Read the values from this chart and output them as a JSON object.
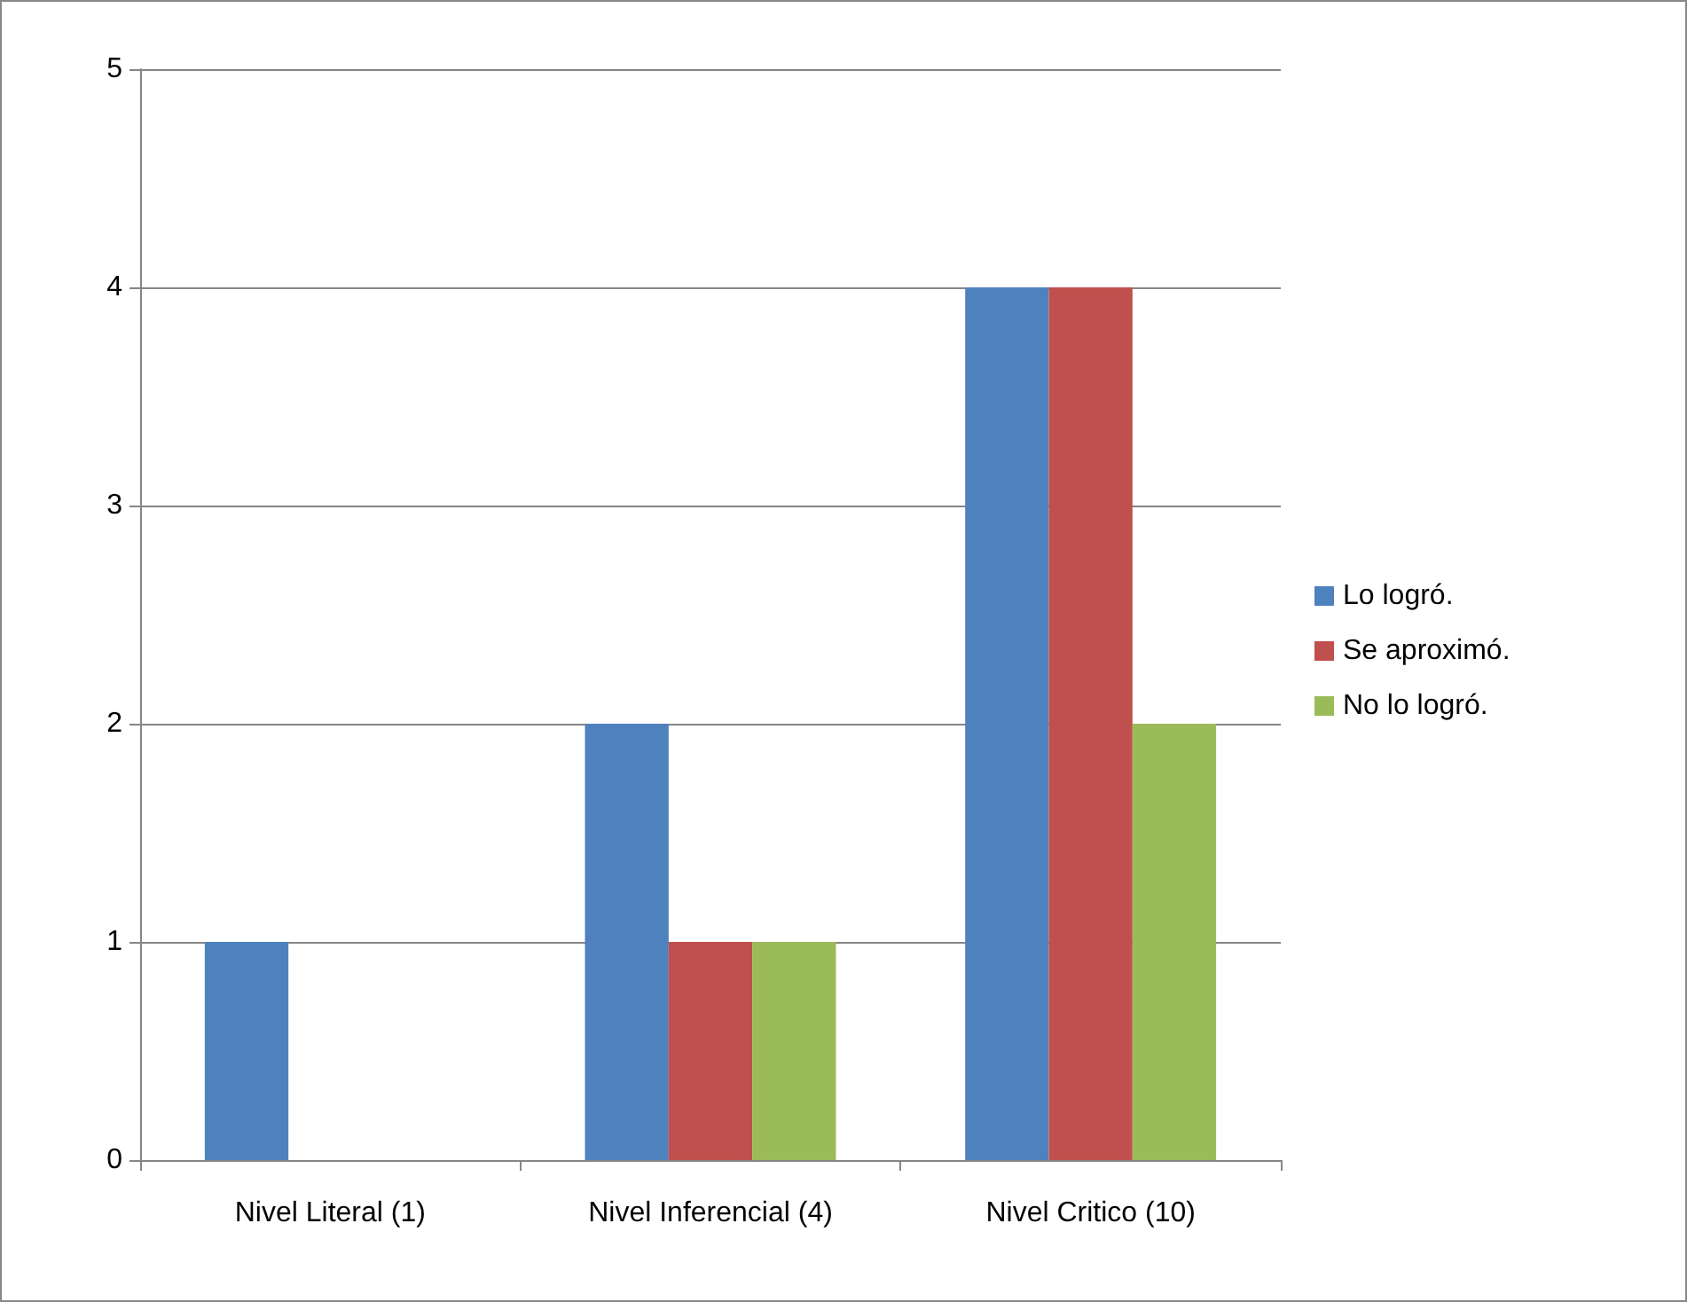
{
  "chart_data": {
    "type": "bar",
    "categories": [
      "Nivel Literal (1)",
      "Nivel Inferencial (4)",
      "Nivel Critico (10)"
    ],
    "series": [
      {
        "name": "Lo logró.",
        "color": "#4f81bd",
        "values": [
          1,
          2,
          4
        ]
      },
      {
        "name": "Se aproximó.",
        "color": "#c0504d",
        "values": [
          0,
          1,
          4
        ]
      },
      {
        "name": "No lo logró.",
        "color": "#9bbb59",
        "values": [
          0,
          1,
          2
        ]
      }
    ],
    "ylim": [
      0,
      5
    ],
    "yticks": [
      0,
      1,
      2,
      3,
      4,
      5
    ],
    "grid": "y",
    "legend": "right"
  }
}
